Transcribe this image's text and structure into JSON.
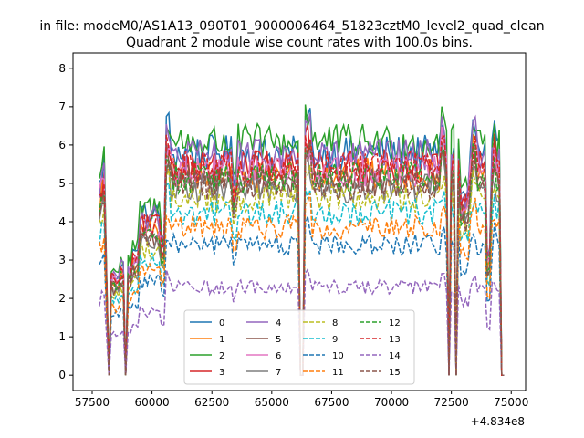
{
  "chart_data": {
    "type": "line",
    "suptitle": "in file: modeM0/AS1A13_090T01_9000006464_51823cztM0_level2_quad_clean",
    "title": "Quadrant 2 module wise count rates with 100.0s bins.",
    "xlabel": "",
    "ylabel": "",
    "x_offset_label": "+4.834e8",
    "xlim": [
      56700,
      75600
    ],
    "ylim": [
      -0.4,
      8.4
    ],
    "xticks": [
      57500,
      60000,
      62500,
      65000,
      67500,
      70000,
      72500,
      75000
    ],
    "xtick_labels": [
      "57500",
      "60000",
      "62500",
      "65000",
      "67500",
      "70000",
      "72500",
      "75000"
    ],
    "yticks": [
      0,
      1,
      2,
      3,
      4,
      5,
      6,
      7,
      8
    ],
    "ytick_labels": [
      "0",
      "1",
      "2",
      "3",
      "4",
      "5",
      "6",
      "7",
      "8"
    ],
    "x_start": 57800,
    "x_end": 74700,
    "bin_width": 100,
    "legend_location": "lower center",
    "legend_columns": 4,
    "series": [
      {
        "name": "0",
        "color": "#1f77b4",
        "dash": "solid",
        "level": 6.3
      },
      {
        "name": "1",
        "color": "#ff7f0e",
        "dash": "solid",
        "level": 5.7
      },
      {
        "name": "2",
        "color": "#2ca02c",
        "dash": "solid",
        "level": 6.6
      },
      {
        "name": "3",
        "color": "#d62728",
        "dash": "solid",
        "level": 5.9
      },
      {
        "name": "4",
        "color": "#9467bd",
        "dash": "solid",
        "level": 6.2
      },
      {
        "name": "5",
        "color": "#8c564b",
        "dash": "solid",
        "level": 5.5
      },
      {
        "name": "6",
        "color": "#e377c2",
        "dash": "solid",
        "level": 5.8
      },
      {
        "name": "7",
        "color": "#7f7f7f",
        "dash": "solid",
        "level": 5.3
      },
      {
        "name": "8",
        "color": "#bcbd22",
        "dash": "dashed",
        "level": 5.0
      },
      {
        "name": "9",
        "color": "#17becf",
        "dash": "dashed",
        "level": 4.6
      },
      {
        "name": "10",
        "color": "#1f77b4",
        "dash": "dashed",
        "level": 3.7
      },
      {
        "name": "11",
        "color": "#ff7f0e",
        "dash": "dashed",
        "level": 4.2
      },
      {
        "name": "12",
        "color": "#2ca02c",
        "dash": "dashed",
        "level": 5.6
      },
      {
        "name": "13",
        "color": "#d62728",
        "dash": "dashed",
        "level": 5.9
      },
      {
        "name": "14",
        "color": "#9467bd",
        "dash": "dashed",
        "level": 2.5
      },
      {
        "name": "15",
        "color": "#8c564b",
        "dash": "dashed",
        "level": 5.4
      }
    ]
  }
}
